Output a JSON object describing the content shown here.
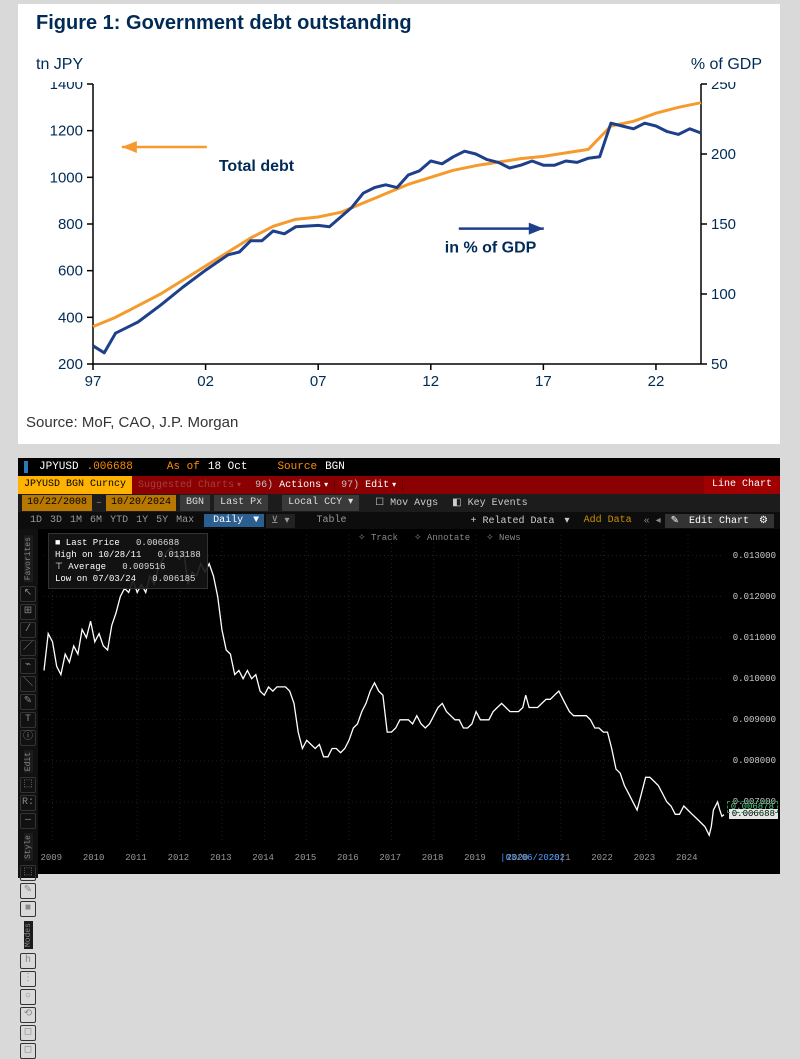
{
  "figure1": {
    "title": "Figure 1: Government debt outstanding",
    "ylabel_left": "tn JPY",
    "ylabel_right": "% of GDP",
    "source": "Source: MoF, CAO, J.P. Morgan",
    "axis_color": "#000000",
    "title_color": "#002b56",
    "label_color": "#002b56",
    "x": {
      "min": 1997,
      "max": 2024,
      "ticks": [
        97,
        2,
        7,
        12,
        17,
        22
      ],
      "tick_labels": [
        "97",
        "02",
        "07",
        "12",
        "17",
        "22"
      ]
    },
    "y_left": {
      "min": 200,
      "max": 1400,
      "step": 200
    },
    "y_right": {
      "min": 50,
      "max": 250,
      "step": 50
    },
    "annotations": {
      "total_debt": {
        "text": "Total debt",
        "color": "#f59b2d",
        "arrow": "left",
        "x": 2002.5,
        "y_l": 1130
      },
      "pct_gdp": {
        "text": "in % of GDP",
        "color": "#1e3f8a",
        "arrow": "right",
        "x": 2012.8,
        "y_l": 780
      }
    },
    "series": {
      "total_debt": {
        "color": "#f59b2d",
        "width": 3,
        "axis": "left",
        "points": [
          [
            1997,
            360
          ],
          [
            1998,
            400
          ],
          [
            1999,
            450
          ],
          [
            2000,
            500
          ],
          [
            2001,
            560
          ],
          [
            2002,
            620
          ],
          [
            2003,
            680
          ],
          [
            2004,
            740
          ],
          [
            2005,
            790
          ],
          [
            2006,
            820
          ],
          [
            2007,
            830
          ],
          [
            2008,
            850
          ],
          [
            2009,
            890
          ],
          [
            2010,
            930
          ],
          [
            2011,
            970
          ],
          [
            2012,
            1000
          ],
          [
            2013,
            1030
          ],
          [
            2014,
            1050
          ],
          [
            2015,
            1065
          ],
          [
            2016,
            1080
          ],
          [
            2017,
            1090
          ],
          [
            2018,
            1105
          ],
          [
            2019,
            1120
          ],
          [
            2020,
            1220
          ],
          [
            2021,
            1240
          ],
          [
            2022,
            1275
          ],
          [
            2023,
            1300
          ],
          [
            2024,
            1320
          ]
        ]
      },
      "pct_gdp": {
        "color": "#1e3f8a",
        "width": 3,
        "axis": "right",
        "points": [
          [
            1997,
            63
          ],
          [
            1997.5,
            58
          ],
          [
            1998,
            72
          ],
          [
            1999,
            80
          ],
          [
            2000,
            92
          ],
          [
            2001,
            105
          ],
          [
            2002,
            117
          ],
          [
            2003,
            128
          ],
          [
            2003.5,
            130
          ],
          [
            2004,
            138
          ],
          [
            2004.5,
            138
          ],
          [
            2005,
            145
          ],
          [
            2005.5,
            143
          ],
          [
            2006,
            148
          ],
          [
            2007,
            149
          ],
          [
            2007.5,
            148
          ],
          [
            2008,
            155
          ],
          [
            2008.5,
            162
          ],
          [
            2009,
            172
          ],
          [
            2009.5,
            176
          ],
          [
            2010,
            178
          ],
          [
            2010.5,
            176
          ],
          [
            2011,
            185
          ],
          [
            2011.5,
            188
          ],
          [
            2012,
            195
          ],
          [
            2012.5,
            193
          ],
          [
            2013,
            198
          ],
          [
            2013.5,
            202
          ],
          [
            2014,
            200
          ],
          [
            2014.5,
            196
          ],
          [
            2015,
            194
          ],
          [
            2015.5,
            190
          ],
          [
            2016,
            192
          ],
          [
            2016.5,
            195
          ],
          [
            2017,
            192
          ],
          [
            2017.5,
            192
          ],
          [
            2018,
            195
          ],
          [
            2018.5,
            194
          ],
          [
            2019,
            197
          ],
          [
            2019.5,
            198
          ],
          [
            2020,
            222
          ],
          [
            2020.5,
            220
          ],
          [
            2021,
            218
          ],
          [
            2021.5,
            222
          ],
          [
            2022,
            220
          ],
          [
            2022.5,
            216
          ],
          [
            2023,
            214
          ],
          [
            2023.5,
            218
          ],
          [
            2024,
            215
          ]
        ]
      }
    }
  },
  "bloomberg": {
    "bg": "#000000",
    "header": {
      "symbol": "JPYUSD",
      "price": ".006688",
      "asof_label": "As of",
      "asof_date": "18 Oct",
      "source_label": "Source",
      "source": "BGN"
    },
    "redbar": {
      "security": "JPYUSD BGN Curncy",
      "suggested": "Suggested Charts",
      "actions_num": "96)",
      "actions": "Actions",
      "edit_num": "97)",
      "edit": "Edit",
      "line_chart": "Line Chart"
    },
    "row3": {
      "date_from": "10/22/2008",
      "date_to": "10/20/2024",
      "bgn": "BGN",
      "lastpx": "Last Px",
      "localccy": "Local CCY",
      "movavgs": "Mov Avgs",
      "keyevents": "Key Events"
    },
    "row4": {
      "ranges": [
        "1D",
        "3D",
        "1M",
        "6M",
        "YTD",
        "1Y",
        "5Y",
        "Max"
      ],
      "daily": "Daily",
      "table": "Table",
      "related": "+ Related Data",
      "add_data": "Add Data",
      "edit_chart": "Edit Chart"
    },
    "leftrail": {
      "groups": [
        "Favorites",
        "Edit",
        "Style",
        "Modes"
      ],
      "icons": [
        "↖",
        "⊞",
        "/",
        "／",
        "⌁",
        "＼",
        "✎",
        "T",
        "ⓘ",
        "⬚",
        "R:",
        "—",
        "⬚",
        "✎",
        "■",
        "h",
        "⋮",
        "○",
        "⟲",
        "◻",
        "◻"
      ]
    },
    "infobox": {
      "rows": [
        [
          "■ Last Price",
          "0.006688"
        ],
        [
          "  High on 10/28/11",
          "0.013188"
        ],
        [
          "⊤ Average",
          "0.009516"
        ],
        [
          "  Low on 07/03/24",
          "0.006185"
        ]
      ]
    },
    "topmenu": [
      "Track",
      "Annotate",
      "News"
    ],
    "last_label": "0.006688",
    "green_label": "0.006878",
    "blue_date": "03/06/2020",
    "chart": {
      "ymin": 0.006,
      "ymax": 0.0135,
      "yticks": [
        0.013,
        0.012,
        0.011,
        0.01,
        0.009,
        0.008,
        0.007
      ],
      "xmin": 2008.8,
      "xmax": 2024.85,
      "xticks": [
        2009,
        2010,
        2011,
        2012,
        2013,
        2014,
        2015,
        2016,
        2017,
        2018,
        2019,
        2020,
        2021,
        2022,
        2023,
        2024
      ],
      "line_color": "#ffffff",
      "grid_color": "#2a2a2a",
      "data": [
        [
          2008.8,
          0.0102
        ],
        [
          2008.9,
          0.0111
        ],
        [
          2009.0,
          0.0109
        ],
        [
          2009.1,
          0.0103
        ],
        [
          2009.2,
          0.0101
        ],
        [
          2009.3,
          0.0106
        ],
        [
          2009.4,
          0.0104
        ],
        [
          2009.5,
          0.0108
        ],
        [
          2009.6,
          0.0106
        ],
        [
          2009.7,
          0.0112
        ],
        [
          2009.8,
          0.011
        ],
        [
          2009.9,
          0.0114
        ],
        [
          2010.0,
          0.0109
        ],
        [
          2010.1,
          0.0111
        ],
        [
          2010.2,
          0.0108
        ],
        [
          2010.3,
          0.0107
        ],
        [
          2010.35,
          0.011
        ],
        [
          2010.4,
          0.0113
        ],
        [
          2010.5,
          0.0116
        ],
        [
          2010.6,
          0.012
        ],
        [
          2010.7,
          0.0122
        ],
        [
          2010.8,
          0.0121
        ],
        [
          2010.9,
          0.0124
        ],
        [
          2011.0,
          0.0121
        ],
        [
          2011.1,
          0.0123
        ],
        [
          2011.2,
          0.0121
        ],
        [
          2011.3,
          0.0125
        ],
        [
          2011.4,
          0.0123
        ],
        [
          2011.5,
          0.0127
        ],
        [
          2011.6,
          0.0129
        ],
        [
          2011.7,
          0.0131
        ],
        [
          2011.8,
          0.01319
        ],
        [
          2011.9,
          0.013
        ],
        [
          2012.0,
          0.0129
        ],
        [
          2012.1,
          0.0131
        ],
        [
          2012.2,
          0.0123
        ],
        [
          2012.3,
          0.0126
        ],
        [
          2012.4,
          0.0125
        ],
        [
          2012.5,
          0.0128
        ],
        [
          2012.6,
          0.0126
        ],
        [
          2012.7,
          0.0128
        ],
        [
          2012.8,
          0.0125
        ],
        [
          2012.9,
          0.012
        ],
        [
          2013.0,
          0.0112
        ],
        [
          2013.1,
          0.0107
        ],
        [
          2013.2,
          0.0106
        ],
        [
          2013.3,
          0.0101
        ],
        [
          2013.4,
          0.0102
        ],
        [
          2013.5,
          0.01
        ],
        [
          2013.6,
          0.0102
        ],
        [
          2013.7,
          0.01
        ],
        [
          2013.8,
          0.0101
        ],
        [
          2013.9,
          0.0097
        ],
        [
          2014.0,
          0.0096
        ],
        [
          2014.1,
          0.0098
        ],
        [
          2014.2,
          0.0097
        ],
        [
          2014.3,
          0.0098
        ],
        [
          2014.4,
          0.0098
        ],
        [
          2014.5,
          0.0098
        ],
        [
          2014.6,
          0.0097
        ],
        [
          2014.7,
          0.0094
        ],
        [
          2014.8,
          0.0087
        ],
        [
          2014.9,
          0.0083
        ],
        [
          2015.0,
          0.0085
        ],
        [
          2015.1,
          0.0084
        ],
        [
          2015.2,
          0.0083
        ],
        [
          2015.3,
          0.0084
        ],
        [
          2015.4,
          0.0081
        ],
        [
          2015.5,
          0.0081
        ],
        [
          2015.6,
          0.0083
        ],
        [
          2015.7,
          0.0083
        ],
        [
          2015.8,
          0.0082
        ],
        [
          2015.9,
          0.0083
        ],
        [
          2016.0,
          0.0085
        ],
        [
          2016.1,
          0.0088
        ],
        [
          2016.2,
          0.0089
        ],
        [
          2016.3,
          0.0092
        ],
        [
          2016.4,
          0.0094
        ],
        [
          2016.5,
          0.0097
        ],
        [
          2016.6,
          0.0099
        ],
        [
          2016.7,
          0.0097
        ],
        [
          2016.8,
          0.0096
        ],
        [
          2016.9,
          0.0087
        ],
        [
          2017.0,
          0.0087
        ],
        [
          2017.1,
          0.0088
        ],
        [
          2017.2,
          0.009
        ],
        [
          2017.3,
          0.009
        ],
        [
          2017.4,
          0.009
        ],
        [
          2017.5,
          0.0089
        ],
        [
          2017.6,
          0.0091
        ],
        [
          2017.7,
          0.0089
        ],
        [
          2017.8,
          0.0088
        ],
        [
          2017.9,
          0.0089
        ],
        [
          2018.0,
          0.0091
        ],
        [
          2018.1,
          0.0093
        ],
        [
          2018.2,
          0.0094
        ],
        [
          2018.3,
          0.0092
        ],
        [
          2018.4,
          0.0091
        ],
        [
          2018.5,
          0.009
        ],
        [
          2018.6,
          0.009
        ],
        [
          2018.7,
          0.0088
        ],
        [
          2018.8,
          0.0088
        ],
        [
          2018.9,
          0.0089
        ],
        [
          2019.0,
          0.0092
        ],
        [
          2019.1,
          0.009
        ],
        [
          2019.2,
          0.009
        ],
        [
          2019.3,
          0.009
        ],
        [
          2019.4,
          0.0092
        ],
        [
          2019.5,
          0.0093
        ],
        [
          2019.6,
          0.0094
        ],
        [
          2019.7,
          0.0093
        ],
        [
          2019.8,
          0.0092
        ],
        [
          2019.9,
          0.0092
        ],
        [
          2020.0,
          0.0092
        ],
        [
          2020.1,
          0.0093
        ],
        [
          2020.17,
          0.0096
        ],
        [
          2020.25,
          0.0093
        ],
        [
          2020.35,
          0.0093
        ],
        [
          2020.45,
          0.0093
        ],
        [
          2020.55,
          0.0094
        ],
        [
          2020.65,
          0.0095
        ],
        [
          2020.75,
          0.0095
        ],
        [
          2020.85,
          0.0096
        ],
        [
          2020.95,
          0.0097
        ],
        [
          2021.0,
          0.0096
        ],
        [
          2021.1,
          0.0094
        ],
        [
          2021.2,
          0.0092
        ],
        [
          2021.3,
          0.0091
        ],
        [
          2021.4,
          0.0091
        ],
        [
          2021.5,
          0.0091
        ],
        [
          2021.6,
          0.0091
        ],
        [
          2021.7,
          0.009
        ],
        [
          2021.8,
          0.0088
        ],
        [
          2021.9,
          0.0088
        ],
        [
          2022.0,
          0.0087
        ],
        [
          2022.1,
          0.0087
        ],
        [
          2022.2,
          0.0083
        ],
        [
          2022.3,
          0.0078
        ],
        [
          2022.4,
          0.0077
        ],
        [
          2022.5,
          0.0074
        ],
        [
          2022.6,
          0.0072
        ],
        [
          2022.7,
          0.007
        ],
        [
          2022.8,
          0.0068
        ],
        [
          2022.9,
          0.0072
        ],
        [
          2023.0,
          0.0076
        ],
        [
          2023.1,
          0.0076
        ],
        [
          2023.2,
          0.0075
        ],
        [
          2023.3,
          0.0074
        ],
        [
          2023.4,
          0.0072
        ],
        [
          2023.5,
          0.007
        ],
        [
          2023.6,
          0.0069
        ],
        [
          2023.7,
          0.0067
        ],
        [
          2023.8,
          0.0067
        ],
        [
          2023.9,
          0.0069
        ],
        [
          2024.0,
          0.0068
        ],
        [
          2024.1,
          0.0067
        ],
        [
          2024.2,
          0.0066
        ],
        [
          2024.3,
          0.0065
        ],
        [
          2024.4,
          0.0064
        ],
        [
          2024.5,
          0.00619
        ],
        [
          2024.55,
          0.0064
        ],
        [
          2024.6,
          0.0068
        ],
        [
          2024.7,
          0.007
        ],
        [
          2024.75,
          0.0068
        ],
        [
          2024.8,
          0.00665
        ],
        [
          2024.85,
          0.00669
        ]
      ]
    }
  }
}
